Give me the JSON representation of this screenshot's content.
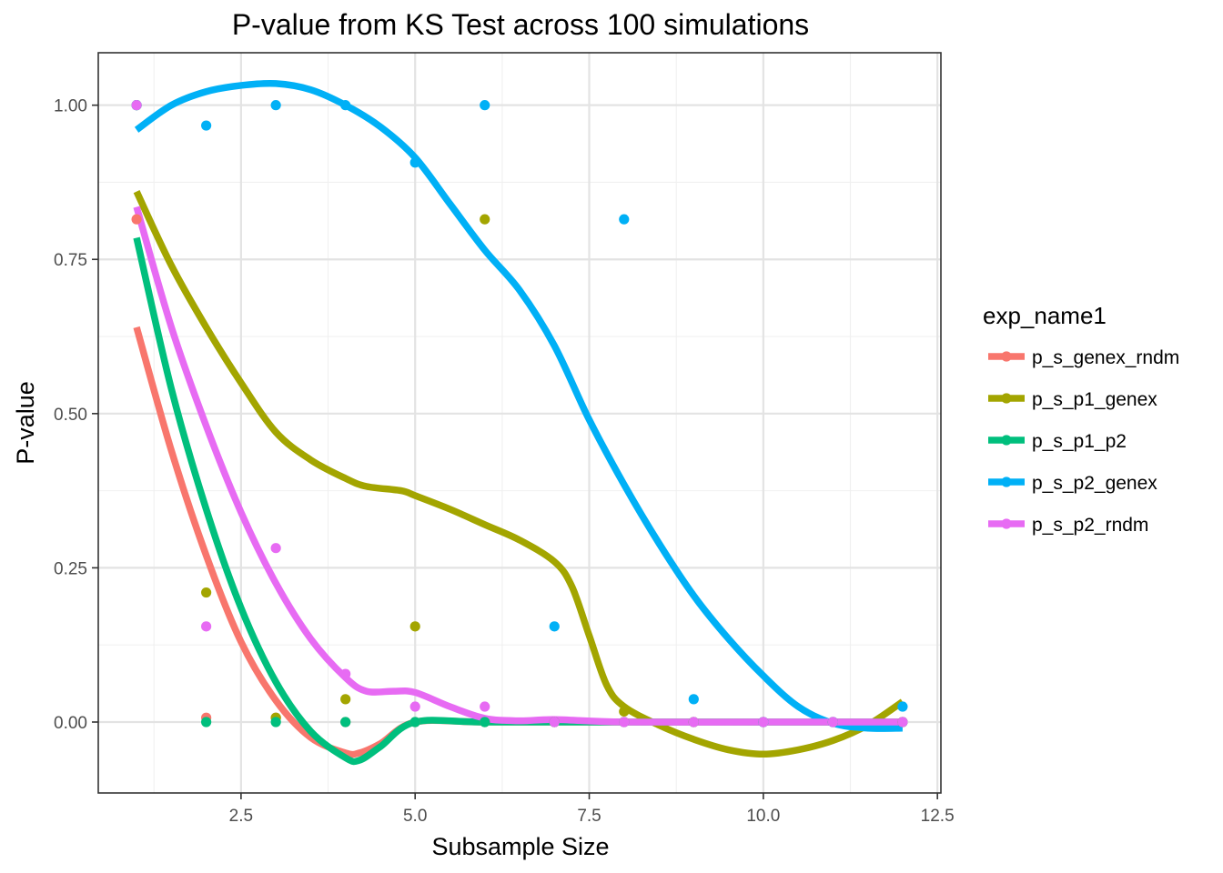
{
  "chart_data": {
    "type": "scatter",
    "title": "P-value from KS Test across 100 simulations",
    "xlabel": "Subsample Size",
    "ylabel": "P-value",
    "xlim": [
      0.45,
      12.55
    ],
    "ylim": [
      -0.115,
      1.085
    ],
    "x_ticks": [
      2.5,
      5.0,
      7.5,
      10.0,
      12.5
    ],
    "x_tick_labels": [
      "2.5",
      "5.0",
      "7.5",
      "10.0",
      "12.5"
    ],
    "y_ticks": [
      0.0,
      0.25,
      0.5,
      0.75,
      1.0
    ],
    "y_tick_labels": [
      "0.00",
      "0.25",
      "0.50",
      "0.75",
      "1.00"
    ],
    "grid": true,
    "legend": {
      "title": "exp_name1",
      "position": "right"
    },
    "series": [
      {
        "name": "p_s_genex_rndm",
        "color": "#F8766D",
        "points": [
          [
            1,
            0.815
          ],
          [
            2,
            0.007
          ],
          [
            3,
            0.007
          ],
          [
            4,
            0.0
          ],
          [
            5,
            0.0
          ],
          [
            6,
            0.0
          ],
          [
            7,
            0.0
          ],
          [
            8,
            0.0
          ],
          [
            9,
            0.0
          ],
          [
            10,
            0.0
          ],
          [
            11,
            0.0
          ],
          [
            12,
            0.0
          ]
        ],
        "smooth": [
          [
            1,
            0.64
          ],
          [
            1.5,
            0.44
          ],
          [
            2,
            0.27
          ],
          [
            2.5,
            0.13
          ],
          [
            3,
            0.035
          ],
          [
            3.5,
            -0.025
          ],
          [
            4,
            -0.05
          ],
          [
            4.2,
            -0.05
          ],
          [
            4.5,
            -0.035
          ],
          [
            5,
            0.0
          ],
          [
            6,
            0.0
          ],
          [
            8,
            0.0
          ],
          [
            10,
            0.0
          ],
          [
            12,
            0.0
          ]
        ]
      },
      {
        "name": "p_s_p1_genex",
        "color": "#A3A500",
        "points": [
          [
            1,
            1.0
          ],
          [
            2,
            0.21
          ],
          [
            3,
            0.007
          ],
          [
            4,
            0.037
          ],
          [
            5,
            0.155
          ],
          [
            6,
            0.815
          ],
          [
            7,
            0.0
          ],
          [
            8,
            0.017
          ],
          [
            9,
            0.0
          ],
          [
            10,
            0.0
          ],
          [
            11,
            0.0
          ],
          [
            12,
            0.0
          ]
        ],
        "smooth": [
          [
            1,
            0.86
          ],
          [
            1.5,
            0.74
          ],
          [
            2,
            0.64
          ],
          [
            2.5,
            0.55
          ],
          [
            3,
            0.47
          ],
          [
            3.5,
            0.425
          ],
          [
            4,
            0.395
          ],
          [
            4.3,
            0.382
          ],
          [
            4.8,
            0.375
          ],
          [
            5,
            0.367
          ],
          [
            5.5,
            0.345
          ],
          [
            6,
            0.32
          ],
          [
            6.5,
            0.295
          ],
          [
            7,
            0.26
          ],
          [
            7.25,
            0.22
          ],
          [
            7.5,
            0.14
          ],
          [
            7.75,
            0.06
          ],
          [
            8,
            0.025
          ],
          [
            8.5,
            -0.005
          ],
          [
            9,
            -0.028
          ],
          [
            9.5,
            -0.045
          ],
          [
            10,
            -0.052
          ],
          [
            10.5,
            -0.045
          ],
          [
            11,
            -0.03
          ],
          [
            11.5,
            -0.005
          ],
          [
            12,
            0.033
          ]
        ]
      },
      {
        "name": "p_s_p1_p2",
        "color": "#00BF7D",
        "points": [
          [
            1,
            1.0
          ],
          [
            2,
            0.0
          ],
          [
            3,
            0.0
          ],
          [
            4,
            0.0
          ],
          [
            5,
            0.0
          ],
          [
            6,
            0.0
          ],
          [
            7,
            0.0
          ],
          [
            8,
            0.0
          ],
          [
            9,
            0.0
          ],
          [
            10,
            0.0
          ],
          [
            11,
            0.0
          ],
          [
            12,
            0.0
          ]
        ],
        "smooth": [
          [
            1,
            0.785
          ],
          [
            1.5,
            0.54
          ],
          [
            2,
            0.345
          ],
          [
            2.5,
            0.185
          ],
          [
            3,
            0.065
          ],
          [
            3.5,
            -0.015
          ],
          [
            4,
            -0.058
          ],
          [
            4.2,
            -0.062
          ],
          [
            4.5,
            -0.04
          ],
          [
            5,
            0.0
          ],
          [
            6,
            0.0
          ],
          [
            8,
            0.0
          ],
          [
            10,
            0.0
          ],
          [
            12,
            0.0
          ]
        ]
      },
      {
        "name": "p_s_p2_genex",
        "color": "#00B0F6",
        "points": [
          [
            1,
            1.0
          ],
          [
            2,
            0.967
          ],
          [
            3,
            1.0
          ],
          [
            4,
            1.0
          ],
          [
            5,
            0.907
          ],
          [
            6,
            1.0
          ],
          [
            7,
            0.155
          ],
          [
            8,
            0.815
          ],
          [
            9,
            0.037
          ],
          [
            10,
            0.0
          ],
          [
            11,
            0.0
          ],
          [
            12,
            0.025
          ]
        ],
        "smooth": [
          [
            1,
            0.96
          ],
          [
            1.5,
            1.0
          ],
          [
            2,
            1.022
          ],
          [
            2.5,
            1.032
          ],
          [
            3,
            1.035
          ],
          [
            3.5,
            1.025
          ],
          [
            4,
            1.0
          ],
          [
            4.5,
            0.965
          ],
          [
            5,
            0.915
          ],
          [
            5.5,
            0.84
          ],
          [
            6,
            0.765
          ],
          [
            6.5,
            0.7
          ],
          [
            7,
            0.61
          ],
          [
            7.5,
            0.49
          ],
          [
            8,
            0.385
          ],
          [
            8.5,
            0.29
          ],
          [
            9,
            0.205
          ],
          [
            9.5,
            0.135
          ],
          [
            10,
            0.075
          ],
          [
            10.5,
            0.025
          ],
          [
            11,
            -0.002
          ],
          [
            11.5,
            -0.01
          ],
          [
            12,
            -0.01
          ]
        ]
      },
      {
        "name": "p_s_p2_rndm",
        "color": "#E76BF3",
        "points": [
          [
            1,
            1.0
          ],
          [
            2,
            0.155
          ],
          [
            3,
            0.282
          ],
          [
            4,
            0.078
          ],
          [
            5,
            0.025
          ],
          [
            6,
            0.025
          ],
          [
            7,
            0.0
          ],
          [
            8,
            0.0
          ],
          [
            9,
            0.0
          ],
          [
            10,
            0.0
          ],
          [
            11,
            0.0
          ],
          [
            12,
            0.0
          ]
        ],
        "smooth": [
          [
            1,
            0.835
          ],
          [
            1.5,
            0.64
          ],
          [
            2,
            0.48
          ],
          [
            2.5,
            0.34
          ],
          [
            3,
            0.225
          ],
          [
            3.5,
            0.135
          ],
          [
            4,
            0.072
          ],
          [
            4.3,
            0.05
          ],
          [
            4.7,
            0.05
          ],
          [
            5,
            0.048
          ],
          [
            5.5,
            0.025
          ],
          [
            6,
            0.006
          ],
          [
            6.5,
            0.002
          ],
          [
            7,
            0.004
          ],
          [
            8,
            0.0
          ],
          [
            10,
            0.0
          ],
          [
            12,
            0.0
          ]
        ]
      }
    ]
  }
}
